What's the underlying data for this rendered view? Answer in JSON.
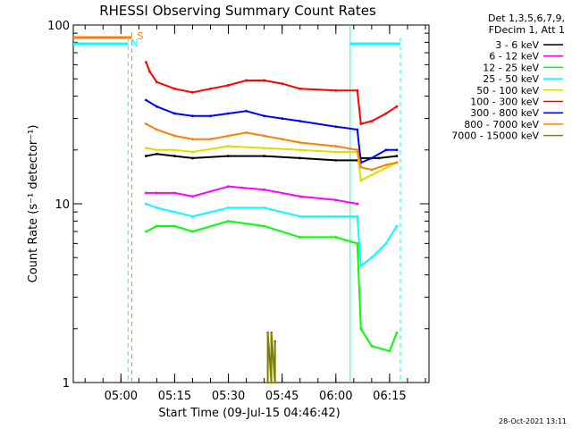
{
  "chart_data": {
    "type": "line",
    "title": "RHESSI Observing Summary Count Rates",
    "xlabel": "Start Time (09-Jul-15 04:46:42)",
    "ylabel": "Count Rate (s⁻¹ detector⁻¹)",
    "yscale": "log",
    "ylim": [
      1,
      100
    ],
    "xlim": [
      "04:46:42",
      "06:26:00"
    ],
    "x_unit": "time (HH:MM, 09-Jul-15)",
    "x_ticks": [
      "05:00",
      "05:15",
      "05:30",
      "05:45",
      "06:00",
      "06:15"
    ],
    "y_ticks": [
      "1",
      "10",
      "100"
    ],
    "legend_header": [
      "Det 1,3,5,6,7,9,",
      "FDecim 1, Att 1"
    ],
    "legend_position": "right",
    "series": [
      {
        "name": "3 - 6 keV",
        "color": "#000000",
        "x": [
          "05:07",
          "05:10",
          "05:15",
          "05:20",
          "05:30",
          "05:40",
          "05:50",
          "06:00",
          "06:06",
          "06:07",
          "06:12",
          "06:17"
        ],
        "y": [
          18.5,
          19.0,
          18.5,
          18.0,
          18.5,
          18.5,
          18.0,
          17.5,
          17.5,
          18.0,
          18.0,
          18.5
        ]
      },
      {
        "name": "6 - 12 keV",
        "color": "#ff00ff",
        "x": [
          "05:07",
          "05:10",
          "05:15",
          "05:20",
          "05:30",
          "05:40",
          "05:50",
          "06:00",
          "06:06"
        ],
        "y": [
          11.5,
          11.5,
          11.5,
          11.0,
          12.5,
          12.0,
          11.0,
          10.5,
          10.0
        ]
      },
      {
        "name": "12 - 25 keV",
        "color": "#00ff00",
        "x": [
          "05:07",
          "05:10",
          "05:15",
          "05:20",
          "05:30",
          "05:40",
          "05:50",
          "06:00",
          "06:06",
          "06:07",
          "06:10",
          "06:15",
          "06:17"
        ],
        "y": [
          7.0,
          7.5,
          7.5,
          7.0,
          8.0,
          7.5,
          6.5,
          6.5,
          6.0,
          2.0,
          1.6,
          1.5,
          1.9
        ]
      },
      {
        "name": "25 - 50 keV",
        "color": "#00ffff",
        "x": [
          "05:07",
          "05:10",
          "05:15",
          "05:20",
          "05:30",
          "05:40",
          "05:50",
          "06:00",
          "06:06",
          "06:07",
          "06:10",
          "06:14",
          "06:17"
        ],
        "y": [
          10.0,
          9.5,
          9.0,
          8.5,
          9.5,
          9.5,
          8.5,
          8.5,
          8.5,
          4.5,
          5.0,
          6.0,
          7.5
        ]
      },
      {
        "name": "50 - 100 keV",
        "color": "#dddd00",
        "x": [
          "05:07",
          "05:10",
          "05:15",
          "05:20",
          "05:30",
          "05:40",
          "05:50",
          "06:00",
          "06:06",
          "06:07",
          "06:10",
          "06:13",
          "06:17"
        ],
        "y": [
          20.5,
          20.0,
          20.0,
          19.5,
          21.0,
          20.5,
          20.0,
          19.5,
          19.5,
          13.5,
          14.5,
          15.5,
          17.0
        ]
      },
      {
        "name": "100 - 300 keV",
        "color": "#ff0000",
        "x": [
          "05:07",
          "05:08",
          "05:10",
          "05:15",
          "05:20",
          "05:25",
          "05:30",
          "05:35",
          "05:40",
          "05:45",
          "05:50",
          "06:00",
          "06:06",
          "06:07",
          "06:10",
          "06:14",
          "06:17"
        ],
        "y": [
          62,
          55,
          48,
          44,
          42,
          44,
          46,
          49,
          49,
          47,
          44,
          43,
          43,
          28,
          29,
          32,
          35
        ]
      },
      {
        "name": "300 - 800 keV",
        "color": "#0000ff",
        "x": [
          "05:07",
          "05:10",
          "05:15",
          "05:20",
          "05:25",
          "05:30",
          "05:35",
          "05:40",
          "05:45",
          "05:50",
          "06:00",
          "06:06",
          "06:07",
          "06:10",
          "06:14",
          "06:17"
        ],
        "y": [
          38,
          35,
          32,
          31,
          31,
          32,
          33,
          31,
          30,
          29,
          27,
          26,
          17,
          18,
          20,
          20
        ]
      },
      {
        "name": "800 - 7000 keV",
        "color": "#ff8000",
        "x": [
          "05:07",
          "05:10",
          "05:15",
          "05:20",
          "05:25",
          "05:30",
          "05:35",
          "05:40",
          "05:45",
          "05:50",
          "06:00",
          "06:06",
          "06:07",
          "06:10",
          "06:14",
          "06:17"
        ],
        "y": [
          28,
          26,
          24,
          23,
          23,
          24,
          25,
          24,
          23,
          22,
          21,
          20,
          16,
          15.5,
          16.5,
          17
        ]
      },
      {
        "name": "7000 - 15000 keV",
        "color": "#808000",
        "x": [
          "05:41",
          "05:41",
          "05:42",
          "05:42",
          "05:43",
          "05:43"
        ],
        "y": [
          1.0,
          1.9,
          1.0,
          1.9,
          1.0,
          1.7
        ]
      }
    ],
    "annotations": [
      {
        "text": "S",
        "color": "#ff8000"
      },
      {
        "text": "N",
        "color": "#00ffff"
      }
    ],
    "footer_date": "28-Oct-2021 13:11"
  }
}
